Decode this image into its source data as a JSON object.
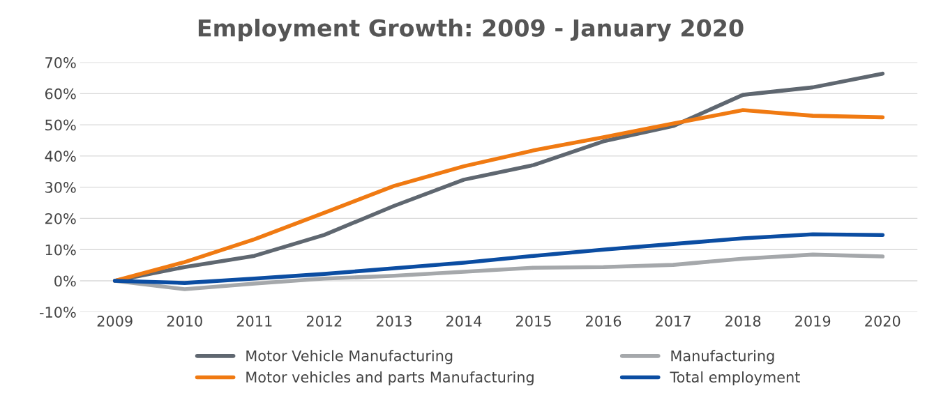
{
  "chart_data": {
    "type": "line",
    "title": "Employment Growth: 2009 - January 2020",
    "categories": [
      "2009",
      "2010",
      "2011",
      "2012",
      "2013",
      "2014",
      "2015",
      "2016",
      "2017",
      "2018",
      "2019",
      "2020"
    ],
    "series": [
      {
        "name": "Motor Vehicle Manufacturing",
        "color": "#5f6770",
        "values": [
          0,
          4.4,
          8,
          14.7,
          24,
          32.4,
          37.1,
          44.7,
          49.6,
          59.6,
          62,
          66.4
        ]
      },
      {
        "name": "Motor vehicles and parts Manufacturing",
        "color": "#f07a12",
        "values": [
          0,
          6,
          13.3,
          21.8,
          30.4,
          36.7,
          41.8,
          46,
          50.4,
          54.7,
          52.9,
          52.4
        ]
      },
      {
        "name": "Manufacturing",
        "color": "#a5a8ab",
        "values": [
          0,
          -2.7,
          -0.9,
          0.7,
          1.6,
          2.9,
          4.2,
          4.4,
          5.1,
          7.1,
          8.4,
          7.8
        ]
      },
      {
        "name": "Total employment",
        "color": "#0b4da2",
        "values": [
          0,
          -0.7,
          0.7,
          2.2,
          4,
          5.8,
          8,
          10,
          11.8,
          13.6,
          14.9,
          14.7
        ]
      }
    ],
    "ylim": [
      -10,
      70
    ],
    "yticks": [
      {
        "value": -10,
        "label": "-10%"
      },
      {
        "value": 0,
        "label": "0%"
      },
      {
        "value": 10,
        "label": "10%"
      },
      {
        "value": 20,
        "label": "20%"
      },
      {
        "value": 30,
        "label": "30%"
      },
      {
        "value": 40,
        "label": "40%"
      },
      {
        "value": 50,
        "label": "50%"
      },
      {
        "value": 60,
        "label": "60%"
      },
      {
        "value": 70,
        "label": "70%"
      }
    ],
    "grid": "y",
    "legend": "bottom",
    "marker": "none",
    "line_style": "solid"
  }
}
